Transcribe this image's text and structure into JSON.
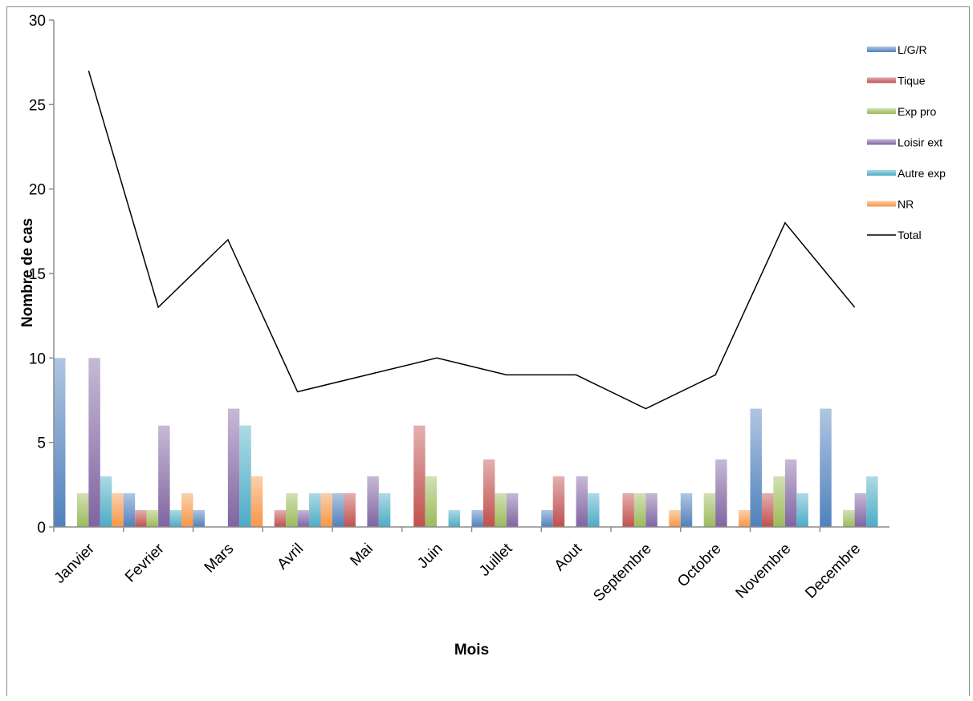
{
  "chart_data": {
    "type": "bar",
    "title": "",
    "xlabel": "Mois",
    "ylabel": "Nombre de cas",
    "ylim": [
      0,
      30
    ],
    "yticks": [
      0,
      5,
      10,
      15,
      20,
      25,
      30
    ],
    "grid": false,
    "legend_position": "top-right",
    "categories": [
      "Janvier",
      "Fevrier",
      "Mars",
      "Avril",
      "Mai",
      "Juin",
      "Juillet",
      "Aout",
      "Septembre",
      "Octobre",
      "Novembre",
      "Decembre"
    ],
    "series": [
      {
        "name": "L/G/R",
        "type": "bar",
        "color": "#4f81bd",
        "values": [
          10,
          2,
          1,
          0,
          2,
          0,
          1,
          1,
          0,
          2,
          7,
          7
        ]
      },
      {
        "name": "Tique",
        "type": "bar",
        "color": "#c0504d",
        "values": [
          0,
          1,
          0,
          1,
          2,
          6,
          4,
          3,
          2,
          0,
          2,
          0
        ]
      },
      {
        "name": "Exp pro",
        "type": "bar",
        "color": "#9bbb59",
        "values": [
          2,
          1,
          0,
          2,
          0,
          3,
          2,
          0,
          2,
          2,
          3,
          1
        ]
      },
      {
        "name": "Loisir ext",
        "type": "bar",
        "color": "#8064a2",
        "values": [
          10,
          6,
          7,
          1,
          3,
          0,
          2,
          3,
          2,
          4,
          4,
          2
        ]
      },
      {
        "name": "Autre exp",
        "type": "bar",
        "color": "#4bacc6",
        "values": [
          3,
          1,
          6,
          2,
          2,
          1,
          0,
          2,
          0,
          0,
          2,
          3
        ]
      },
      {
        "name": "NR",
        "type": "bar",
        "color": "#f79646",
        "values": [
          2,
          2,
          3,
          2,
          0,
          0,
          0,
          0,
          1,
          1,
          0,
          0
        ]
      },
      {
        "name": "Total",
        "type": "line",
        "color": "#000000",
        "values": [
          27,
          13,
          17,
          8,
          9,
          10,
          9,
          9,
          7,
          9,
          18,
          13
        ]
      }
    ]
  }
}
